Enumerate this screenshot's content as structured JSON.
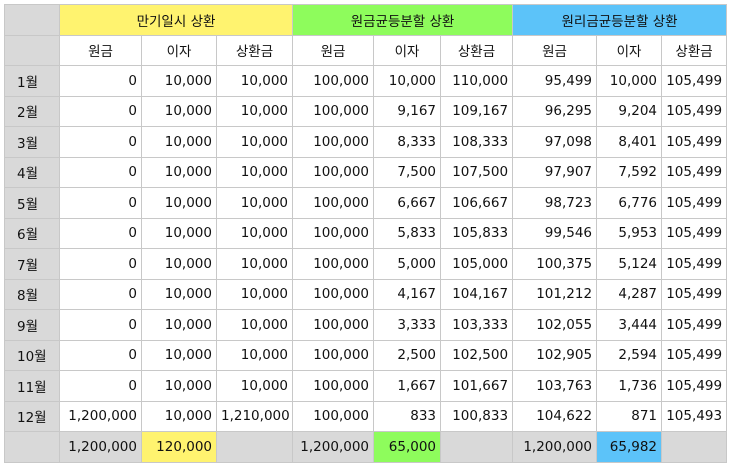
{
  "groups": {
    "bullet": "만기일시 상환",
    "equal_principal": "원금균등분할 상환",
    "equal_payment": "원리금균등분할 상환"
  },
  "subheaders": [
    "원금",
    "이자",
    "상환금",
    "원금",
    "이자",
    "상환금",
    "원금",
    "이자",
    "상환금"
  ],
  "rows": [
    {
      "month": "1월",
      "cells": [
        "0",
        "10,000",
        "10,000",
        "100,000",
        "10,000",
        "110,000",
        "95,499",
        "10,000",
        "105,499"
      ]
    },
    {
      "month": "2월",
      "cells": [
        "0",
        "10,000",
        "10,000",
        "100,000",
        "9,167",
        "109,167",
        "96,295",
        "9,204",
        "105,499"
      ]
    },
    {
      "month": "3월",
      "cells": [
        "0",
        "10,000",
        "10,000",
        "100,000",
        "8,333",
        "108,333",
        "97,098",
        "8,401",
        "105,499"
      ]
    },
    {
      "month": "4월",
      "cells": [
        "0",
        "10,000",
        "10,000",
        "100,000",
        "7,500",
        "107,500",
        "97,907",
        "7,592",
        "105,499"
      ]
    },
    {
      "month": "5월",
      "cells": [
        "0",
        "10,000",
        "10,000",
        "100,000",
        "6,667",
        "106,667",
        "98,723",
        "6,776",
        "105,499"
      ]
    },
    {
      "month": "6월",
      "cells": [
        "0",
        "10,000",
        "10,000",
        "100,000",
        "5,833",
        "105,833",
        "99,546",
        "5,953",
        "105,499"
      ]
    },
    {
      "month": "7월",
      "cells": [
        "0",
        "10,000",
        "10,000",
        "100,000",
        "5,000",
        "105,000",
        "100,375",
        "5,124",
        "105,499"
      ]
    },
    {
      "month": "8월",
      "cells": [
        "0",
        "10,000",
        "10,000",
        "100,000",
        "4,167",
        "104,167",
        "101,212",
        "4,287",
        "105,499"
      ]
    },
    {
      "month": "9월",
      "cells": [
        "0",
        "10,000",
        "10,000",
        "100,000",
        "3,333",
        "103,333",
        "102,055",
        "3,444",
        "105,499"
      ]
    },
    {
      "month": "10월",
      "cells": [
        "0",
        "10,000",
        "10,000",
        "100,000",
        "2,500",
        "102,500",
        "102,905",
        "2,594",
        "105,499"
      ]
    },
    {
      "month": "11월",
      "cells": [
        "0",
        "10,000",
        "10,000",
        "100,000",
        "1,667",
        "101,667",
        "103,763",
        "1,736",
        "105,499"
      ]
    },
    {
      "month": "12월",
      "cells": [
        "1,200,000",
        "10,000",
        "1,210,000",
        "100,000",
        "833",
        "100,833",
        "104,622",
        "871",
        "105,493"
      ]
    }
  ],
  "totals": {
    "bullet_principal": "1,200,000",
    "bullet_interest": "120,000",
    "equal_principal_principal": "1,200,000",
    "equal_principal_interest": "65,000",
    "equal_payment_principal": "1,200,000",
    "equal_payment_interest": "65,982"
  },
  "colors": {
    "bullet": "#fff36f",
    "equal_principal": "#8efc5c",
    "equal_payment": "#5cc3f9",
    "header_gray": "#d9d9d9"
  }
}
